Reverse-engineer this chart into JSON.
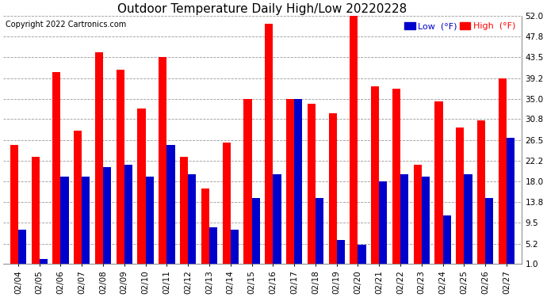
{
  "title": "Outdoor Temperature Daily High/Low 20220228",
  "copyright": "Copyright 2022 Cartronics.com",
  "dates": [
    "02/04",
    "02/05",
    "02/06",
    "02/07",
    "02/08",
    "02/09",
    "02/10",
    "02/11",
    "02/12",
    "02/13",
    "02/14",
    "02/15",
    "02/16",
    "02/17",
    "02/18",
    "02/19",
    "02/20",
    "02/21",
    "02/22",
    "02/23",
    "02/24",
    "02/25",
    "02/26",
    "02/27"
  ],
  "highs": [
    25.5,
    23.0,
    40.5,
    28.5,
    44.5,
    41.0,
    33.0,
    43.5,
    23.0,
    16.5,
    26.0,
    35.0,
    50.5,
    35.0,
    34.0,
    32.0,
    52.5,
    37.5,
    37.0,
    21.5,
    34.5,
    29.0,
    30.5,
    39.2
  ],
  "lows": [
    8.0,
    2.0,
    19.0,
    19.0,
    21.0,
    21.5,
    19.0,
    25.5,
    19.5,
    8.5,
    8.0,
    14.5,
    19.5,
    35.0,
    14.5,
    6.0,
    5.0,
    18.0,
    19.5,
    19.0,
    11.0,
    19.5,
    14.5,
    27.0
  ],
  "ylim_min": 1.0,
  "ylim_max": 52.0,
  "yticks": [
    1.0,
    5.2,
    9.5,
    13.8,
    18.0,
    22.2,
    26.5,
    30.8,
    35.0,
    39.2,
    43.5,
    47.8,
    52.0
  ],
  "bar_width": 0.38,
  "high_color": "#ff0000",
  "low_color": "#0000cc",
  "bg_color": "#ffffff",
  "grid_color": "#999999",
  "title_fontsize": 11,
  "tick_fontsize": 7.5,
  "legend_fontsize": 8,
  "copyright_fontsize": 7
}
